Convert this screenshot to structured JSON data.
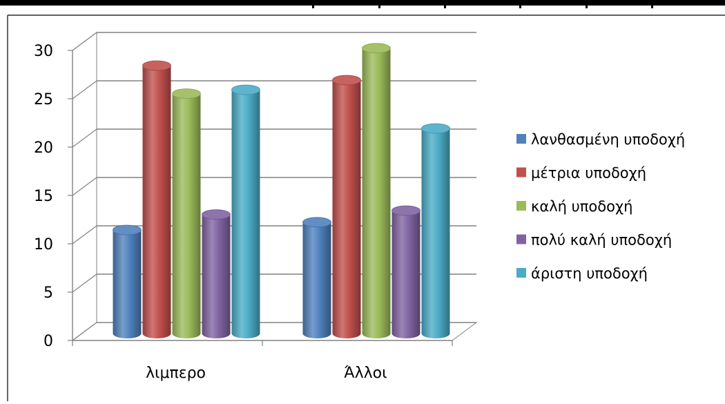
{
  "chart_data": {
    "type": "bar",
    "categories": [
      "λιμπερο",
      "Άλλοι"
    ],
    "series": [
      {
        "name": "λανθασμένη υποδοχή",
        "values": [
          10.5,
          11.3
        ],
        "color": "#4F81BD"
      },
      {
        "name": "μέτρια υποδοχή",
        "values": [
          27.5,
          26.0
        ],
        "color": "#C0504D"
      },
      {
        "name": "καλή υποδοχή",
        "values": [
          24.6,
          29.3
        ],
        "color": "#9BBB59"
      },
      {
        "name": "πολύ καλή υποδοχή",
        "values": [
          12.1,
          12.5
        ],
        "color": "#8064A2"
      },
      {
        "name": "άριστη υποδοχή",
        "values": [
          25.0,
          21.0
        ],
        "color": "#4BACC6"
      }
    ],
    "yticks": [
      "0",
      "5",
      "10",
      "15",
      "20",
      "25",
      "30"
    ],
    "ylim": [
      0,
      30
    ],
    "grid": true,
    "legend_position": "right",
    "three_d": true
  }
}
